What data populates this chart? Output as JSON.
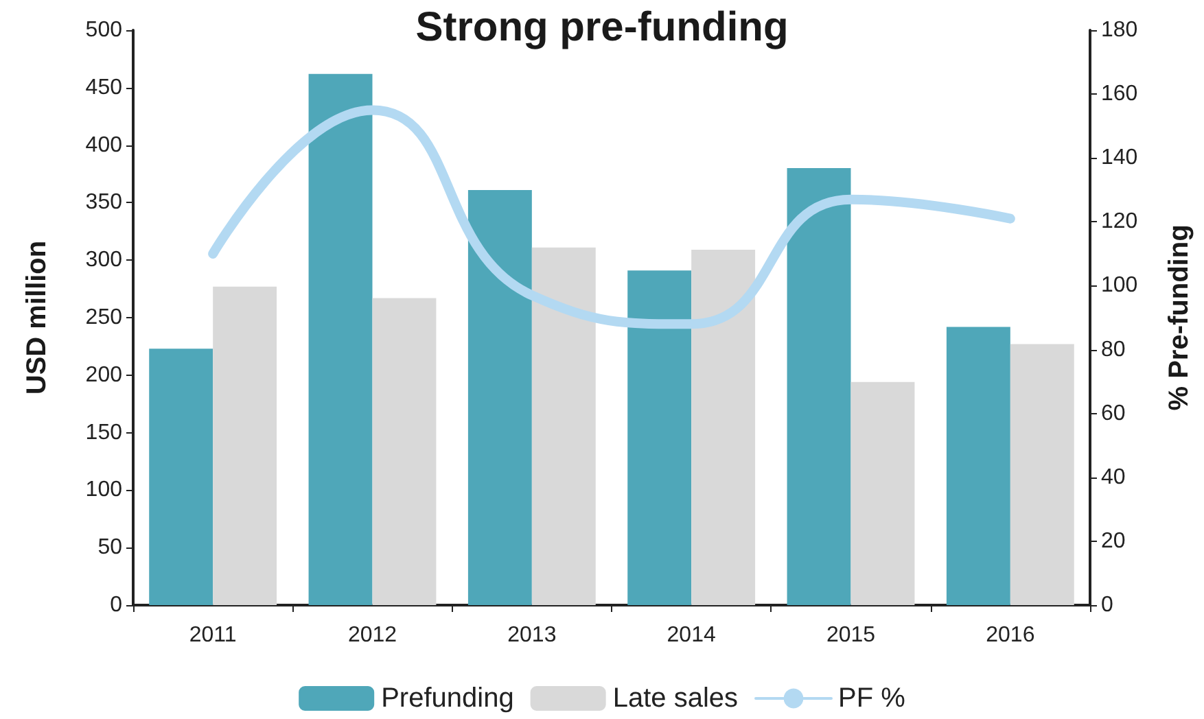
{
  "chart_data": {
    "type": "bar",
    "title": "Strong pre-funding",
    "ylabel": "USD million",
    "y2label": "% Pre-funding",
    "categories": [
      "2011",
      "2012",
      "2013",
      "2014",
      "2015",
      "2016"
    ],
    "series": [
      {
        "name": "Prefunding",
        "color": "#4fa7b9",
        "values": [
          223,
          462,
          361,
          291,
          380,
          242
        ]
      },
      {
        "name": "Late sales",
        "color": "#d9d9d9",
        "values": [
          277,
          267,
          311,
          309,
          194,
          227
        ]
      },
      {
        "name": "PF %",
        "type": "line",
        "axis": "y2",
        "color": "#b3d9f2",
        "values": [
          110,
          155,
          97,
          88,
          127,
          121
        ]
      }
    ],
    "ylim": [
      0,
      500
    ],
    "yticks": [
      0,
      50,
      100,
      150,
      200,
      250,
      300,
      350,
      400,
      450,
      500
    ],
    "y2lim": [
      0,
      180
    ],
    "y2ticks": [
      0,
      20,
      40,
      60,
      80,
      100,
      120,
      140,
      160,
      180
    ],
    "grid": false,
    "legend": "bottom"
  }
}
